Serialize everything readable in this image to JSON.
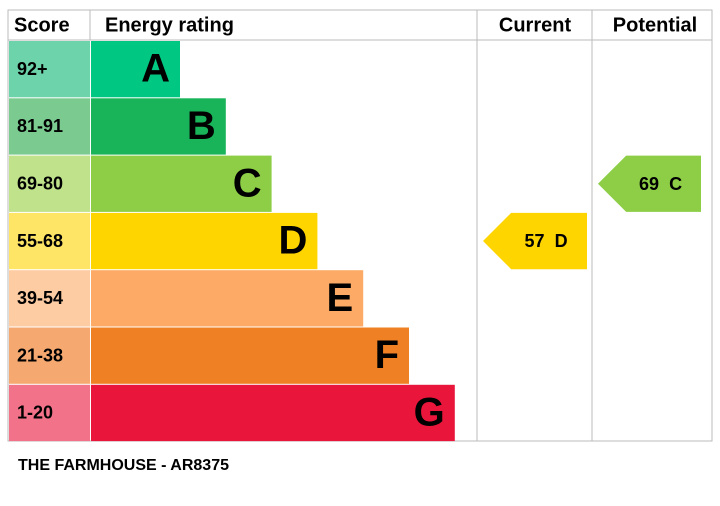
{
  "header": {
    "score": "Score",
    "energy_rating": "Energy rating",
    "current": "Current",
    "potential": "Potential"
  },
  "bands": [
    {
      "score": "92+",
      "letter": "A",
      "color": "#00c781",
      "score_color": "#6cd3ab"
    },
    {
      "score": "81-91",
      "letter": "B",
      "color": "#19b459",
      "score_color": "#7bcb91"
    },
    {
      "score": "69-80",
      "letter": "C",
      "color": "#8dce46",
      "score_color": "#bfe28b"
    },
    {
      "score": "55-68",
      "letter": "D",
      "color": "#ffd500",
      "score_color": "#ffe566"
    },
    {
      "score": "39-54",
      "letter": "E",
      "color": "#fcaa65",
      "score_color": "#fdcca3"
    },
    {
      "score": "21-38",
      "letter": "F",
      "color": "#ef8023",
      "score_color": "#f5a970"
    },
    {
      "score": "1-20",
      "letter": "G",
      "color": "#e9153b",
      "score_color": "#f27389"
    }
  ],
  "current": {
    "value": 57,
    "letter": "D"
  },
  "potential": {
    "value": 69,
    "letter": "C"
  },
  "footer": "THE FARMHOUSE - AR8375"
}
